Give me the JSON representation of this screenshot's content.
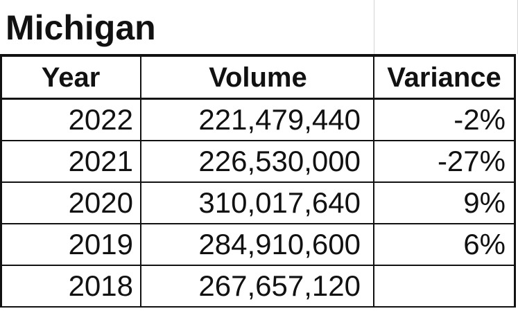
{
  "sheet": {
    "title": "Michigan"
  },
  "table": {
    "headers": [
      "Year",
      "Volume",
      "Variance"
    ],
    "rows": [
      {
        "year": "2022",
        "volume": "221,479,440",
        "variance": "-2%"
      },
      {
        "year": "2021",
        "volume": "226,530,000",
        "variance": "-27%"
      },
      {
        "year": "2020",
        "volume": "310,017,640",
        "variance": "9%"
      },
      {
        "year": "2019",
        "volume": "284,910,600",
        "variance": "6%"
      },
      {
        "year": "2018",
        "volume": "267,657,120",
        "variance": ""
      }
    ]
  },
  "colors": {
    "text": "#111111",
    "grid": "#111111",
    "light_grid": "#d4d4d4",
    "background": "#ffffff"
  }
}
